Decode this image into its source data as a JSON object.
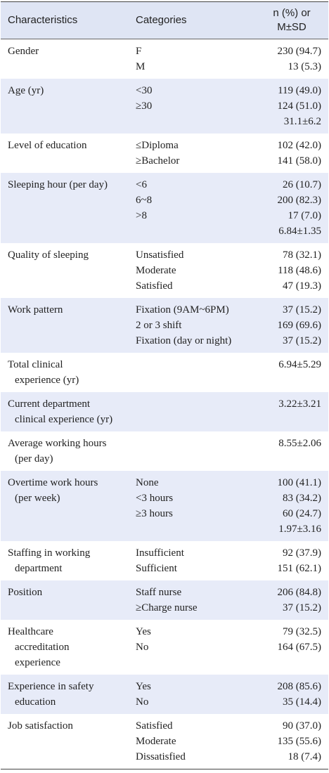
{
  "table": {
    "header": [
      "Characteristics",
      "Categories",
      [
        "n (%) or",
        "M±SD"
      ]
    ],
    "rows": [
      {
        "characteristic": [
          "Gender"
        ],
        "categories": [
          "F",
          "M"
        ],
        "values": [
          "230 (94.7)",
          "13 (5.3)"
        ]
      },
      {
        "characteristic": [
          "Age (yr)"
        ],
        "categories": [
          "<30",
          "≥30"
        ],
        "values": [
          "119 (49.0)",
          "124 (51.0)",
          "31.1±6.2"
        ]
      },
      {
        "characteristic": [
          "Level of education"
        ],
        "categories": [
          "≤Diploma",
          "≥Bachelor"
        ],
        "values": [
          "102 (42.0)",
          "141 (58.0)"
        ]
      },
      {
        "characteristic": [
          "Sleeping hour (per day)"
        ],
        "categories": [
          "<6",
          "6~8",
          ">8"
        ],
        "values": [
          "26 (10.7)",
          "200 (82.3)",
          "17 (7.0)",
          "6.84±1.35"
        ]
      },
      {
        "characteristic": [
          "Quality of sleeping"
        ],
        "categories": [
          "Unsatisfied",
          "Moderate",
          "Satisfied"
        ],
        "values": [
          "78 (32.1)",
          "118 (48.6)",
          "47 (19.3)"
        ]
      },
      {
        "characteristic": [
          "Work pattern"
        ],
        "categories": [
          "Fixation (9AM~6PM)",
          "2 or 3 shift",
          "Fixation (day or night)"
        ],
        "values": [
          "37 (15.2)",
          "169 (69.6)",
          "37 (15.2)"
        ]
      },
      {
        "characteristic": [
          "Total clinical",
          "experience (yr)"
        ],
        "categories": [],
        "values": [
          "6.94±5.29"
        ]
      },
      {
        "characteristic": [
          "Current department",
          "clinical experience (yr)"
        ],
        "categories": [],
        "values": [
          "3.22±3.21"
        ]
      },
      {
        "characteristic": [
          "Average working hours",
          "(per day)"
        ],
        "categories": [],
        "values": [
          "8.55±2.06"
        ]
      },
      {
        "characteristic": [
          "Overtime work hours",
          "(per week)"
        ],
        "categories": [
          "None",
          "<3 hours",
          "≥3 hours"
        ],
        "values": [
          "100 (41.1)",
          "83 (34.2)",
          "60 (24.7)",
          "1.97±3.16"
        ]
      },
      {
        "characteristic": [
          "Staffing in working",
          "department"
        ],
        "categories": [
          "Insufficient",
          "Sufficient"
        ],
        "values": [
          "92 (37.9)",
          "151 (62.1)"
        ]
      },
      {
        "characteristic": [
          "Position"
        ],
        "categories": [
          "Staff nurse",
          "≥Charge nurse"
        ],
        "values": [
          "206 (84.8)",
          "37 (15.2)"
        ]
      },
      {
        "characteristic": [
          "Healthcare",
          "accreditation",
          "experience"
        ],
        "categories": [
          "Yes",
          "No"
        ],
        "values": [
          "79 (32.5)",
          "164 (67.5)"
        ]
      },
      {
        "characteristic": [
          "Experience in safety",
          "education"
        ],
        "categories": [
          "Yes",
          "No"
        ],
        "values": [
          "208 (85.6)",
          "35 (14.4)"
        ]
      },
      {
        "characteristic": [
          "Job satisfaction"
        ],
        "categories": [
          "Satisfied",
          "Moderate",
          "Dissatisfied"
        ],
        "values": [
          "90 (37.0)",
          "135 (55.6)",
          "18 (7.4)"
        ]
      }
    ]
  }
}
